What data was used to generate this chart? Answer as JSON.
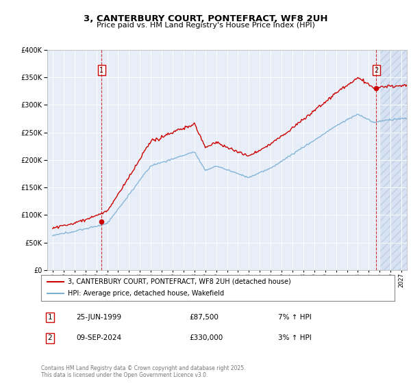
{
  "title": "3, CANTERBURY COURT, PONTEFRACT, WF8 2UH",
  "subtitle": "Price paid vs. HM Land Registry's House Price Index (HPI)",
  "legend_line1": "3, CANTERBURY COURT, PONTEFRACT, WF8 2UH (detached house)",
  "legend_line2": "HPI: Average price, detached house, Wakefield",
  "transaction1_date": "25-JUN-1999",
  "transaction1_price": "£87,500",
  "transaction1_hpi": "7% ↑ HPI",
  "transaction1_year": 1999.48,
  "transaction1_value": 87500,
  "transaction2_date": "09-SEP-2024",
  "transaction2_price": "£330,000",
  "transaction2_hpi": "3% ↑ HPI",
  "transaction2_year": 2024.69,
  "transaction2_value": 330000,
  "copyright": "Contains HM Land Registry data © Crown copyright and database right 2025.\nThis data is licensed under the Open Government Licence v3.0.",
  "ylim": [
    0,
    400000
  ],
  "xmin": 1994.5,
  "xmax": 2027.5,
  "hatch_start": 2025.0,
  "red_color": "#cc0000",
  "blue_color": "#7bafd4",
  "background_color": "#e8eef8"
}
